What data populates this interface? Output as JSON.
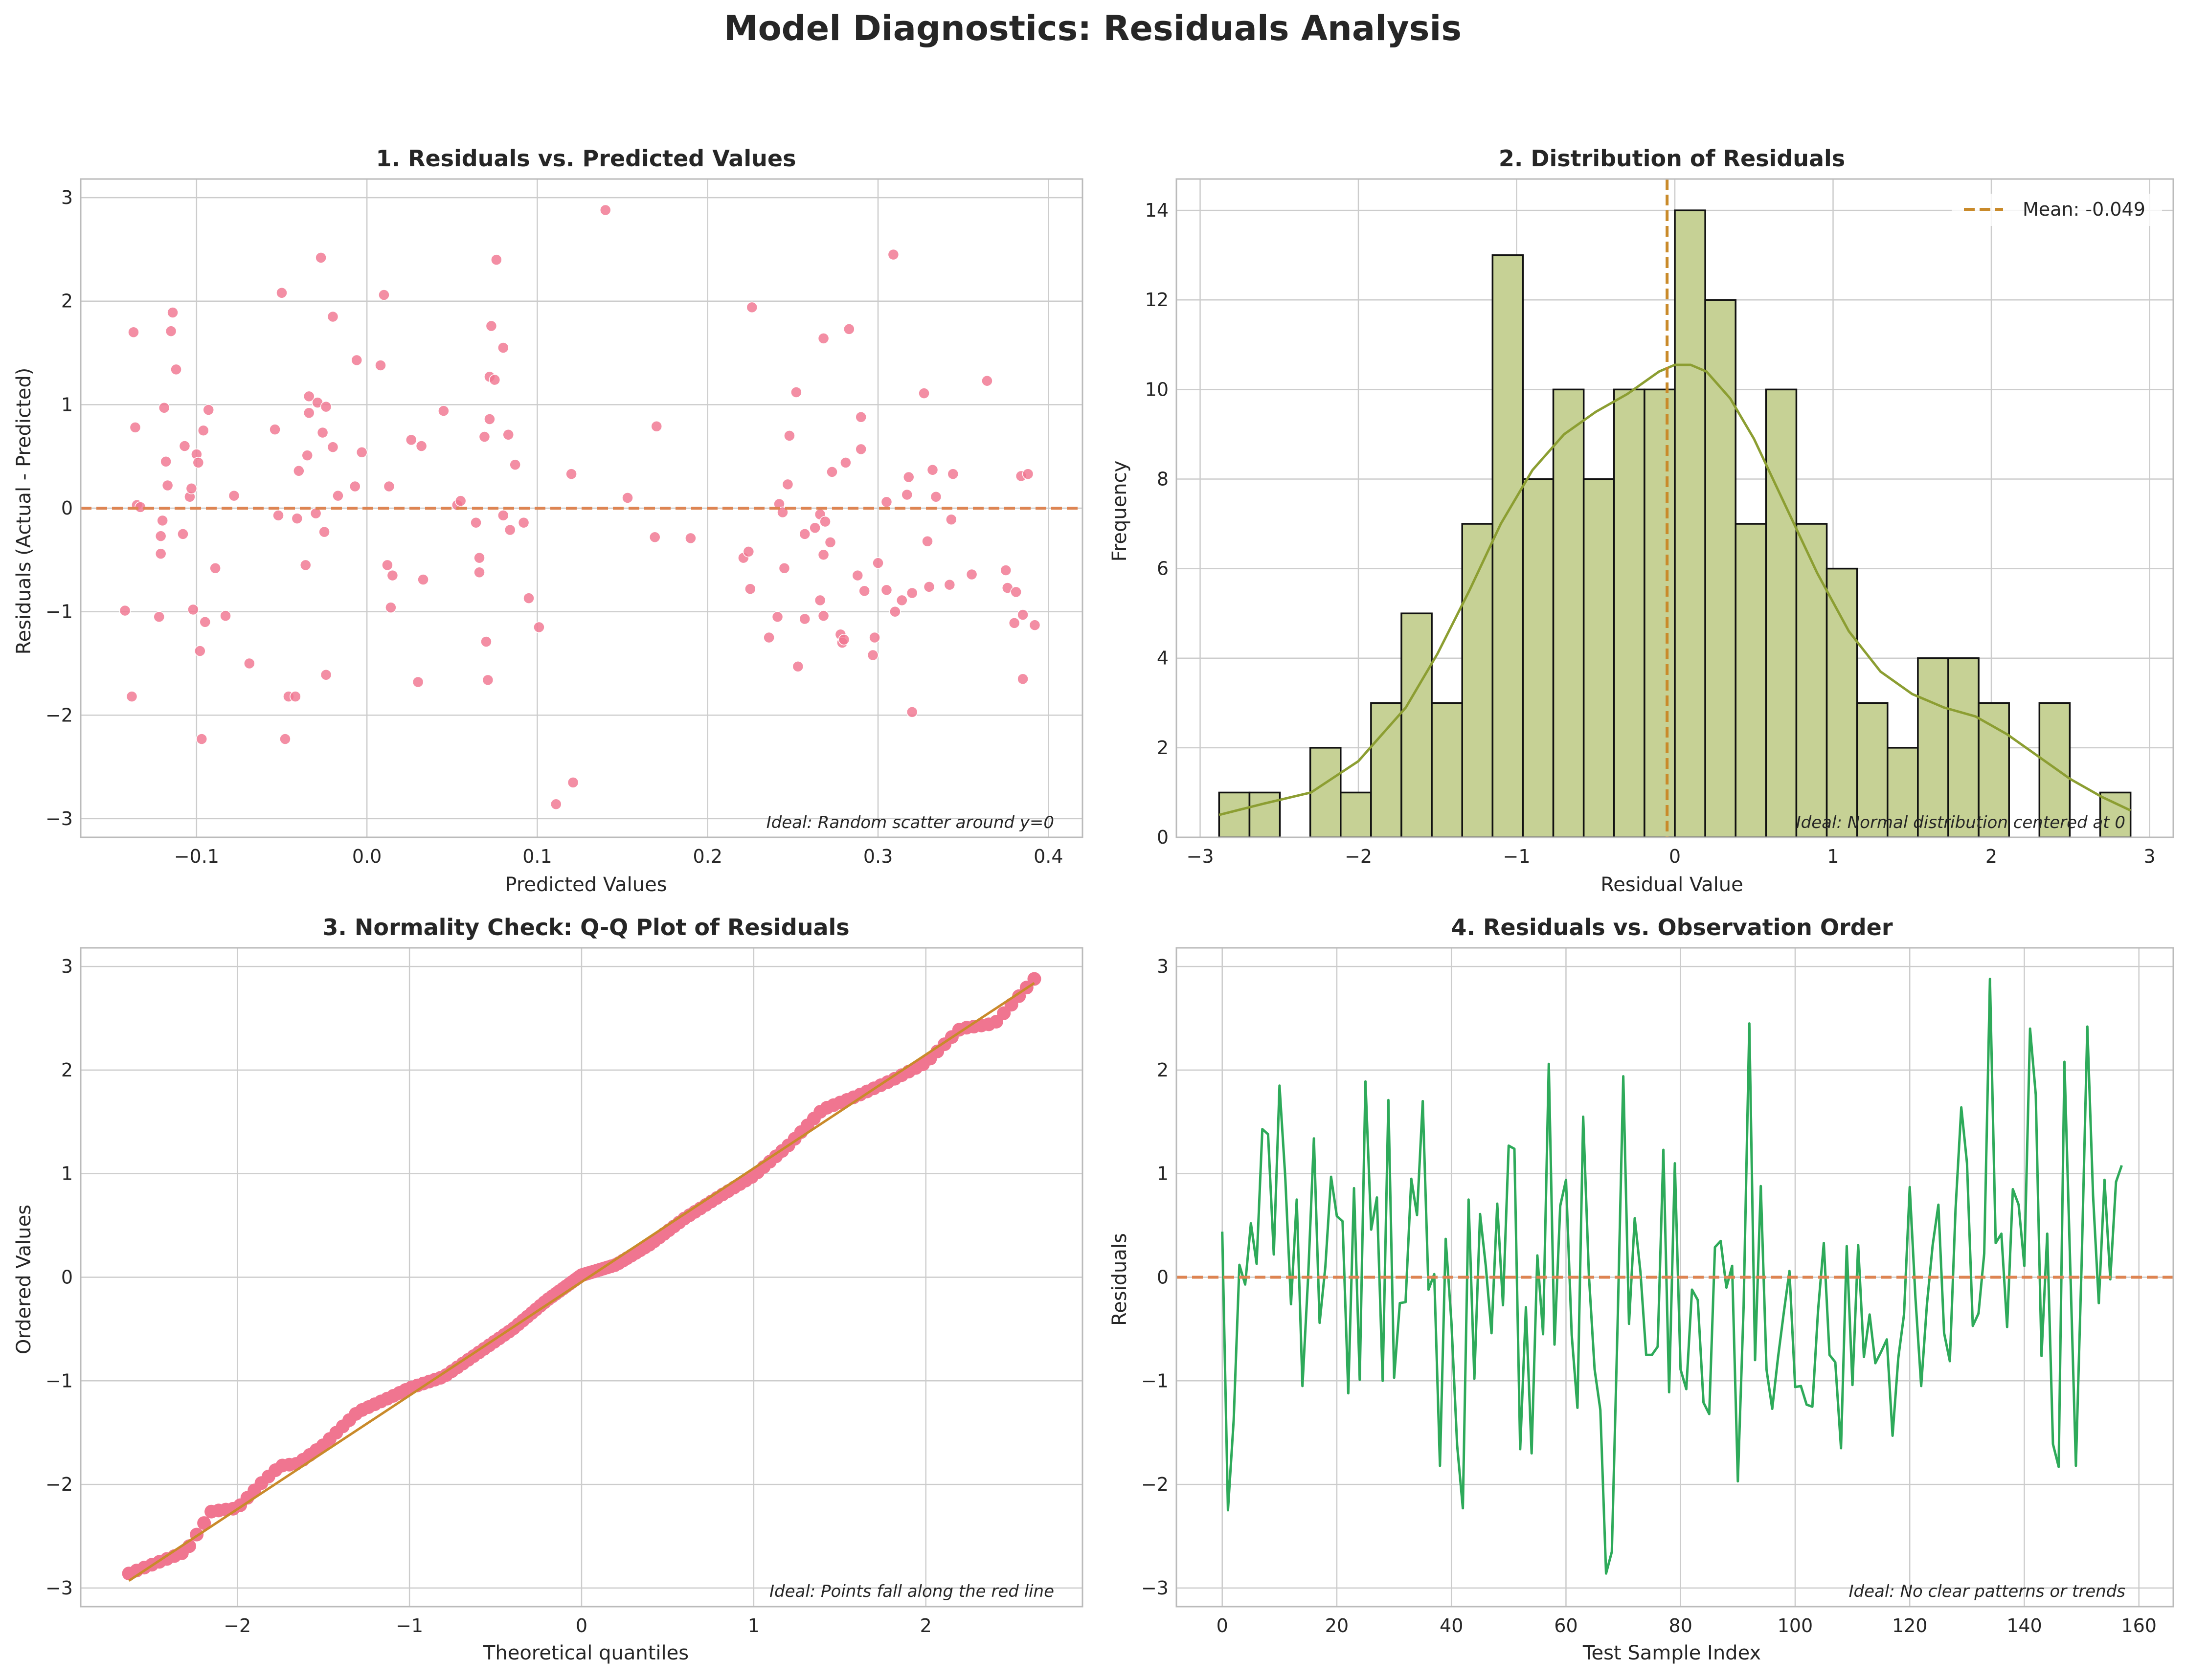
{
  "title": "Model Diagnostics: Residuals Analysis",
  "colors": {
    "scatter": "#f07590",
    "qq_points": "#f07590",
    "qq_line": "#c98a2a",
    "zero_line": "#dd8452",
    "hist_fill": "#c6d195",
    "hist_edge": "#111111",
    "kde": "#8c9e32",
    "mean_line": "#c98a2a",
    "seq_line": "#2eaa5a",
    "grid": "#cccccc",
    "spine": "#bbbbbb"
  },
  "chart_data": [
    {
      "type": "scatter",
      "title": "1. Residuals vs. Predicted Values",
      "xlabel": "Predicted Values",
      "ylabel": "Residuals (Actual - Predicted)",
      "xlim": [
        -0.168,
        0.42
      ],
      "ylim": [
        -3.18,
        3.18
      ],
      "xticks": [
        -0.1,
        0.0,
        0.1,
        0.2,
        0.3,
        0.4
      ],
      "xtick_labels": [
        "−0.1",
        "0.0",
        "0.1",
        "0.2",
        "0.3",
        "0.4"
      ],
      "yticks": [
        -3,
        -2,
        -1,
        0,
        1,
        2,
        3
      ],
      "ytick_labels": [
        "−3",
        "−2",
        "−1",
        "0",
        "1",
        "2",
        "3"
      ],
      "reference_line": {
        "y": 0,
        "style": "dashed"
      },
      "annotation": "Ideal: Random scatter around y=0",
      "grid": true,
      "points": [
        [
          -0.142,
          -0.99
        ],
        [
          -0.138,
          -1.82
        ],
        [
          -0.137,
          1.7
        ],
        [
          -0.136,
          0.78
        ],
        [
          -0.135,
          0.03
        ],
        [
          -0.133,
          0.01
        ],
        [
          -0.122,
          -1.05
        ],
        [
          -0.121,
          -0.27
        ],
        [
          -0.121,
          -0.44
        ],
        [
          -0.12,
          -0.12
        ],
        [
          -0.119,
          0.97
        ],
        [
          -0.118,
          0.45
        ],
        [
          -0.117,
          0.22
        ],
        [
          -0.115,
          1.71
        ],
        [
          -0.114,
          1.89
        ],
        [
          -0.112,
          1.34
        ],
        [
          -0.108,
          -0.25
        ],
        [
          -0.107,
          0.6
        ],
        [
          -0.104,
          0.11
        ],
        [
          -0.103,
          0.19
        ],
        [
          -0.102,
          -0.98
        ],
        [
          -0.1,
          0.52
        ],
        [
          -0.099,
          0.44
        ],
        [
          -0.098,
          -1.38
        ],
        [
          -0.097,
          -2.23
        ],
        [
          -0.096,
          0.75
        ],
        [
          -0.095,
          -1.1
        ],
        [
          -0.093,
          0.95
        ],
        [
          -0.089,
          -0.58
        ],
        [
          -0.083,
          -1.04
        ],
        [
          -0.078,
          0.12
        ],
        [
          -0.069,
          -1.5
        ],
        [
          -0.054,
          0.76
        ],
        [
          -0.052,
          -0.07
        ],
        [
          -0.05,
          2.08
        ],
        [
          -0.048,
          -2.23
        ],
        [
          -0.046,
          -1.82
        ],
        [
          -0.042,
          -1.82
        ],
        [
          -0.041,
          -0.1
        ],
        [
          -0.04,
          0.36
        ],
        [
          -0.036,
          -0.55
        ],
        [
          -0.035,
          0.51
        ],
        [
          -0.034,
          0.92
        ],
        [
          -0.034,
          1.08
        ],
        [
          -0.03,
          -0.05
        ],
        [
          -0.029,
          1.02
        ],
        [
          -0.027,
          2.42
        ],
        [
          -0.026,
          0.73
        ],
        [
          -0.025,
          -0.23
        ],
        [
          -0.024,
          0.98
        ],
        [
          -0.024,
          -1.61
        ],
        [
          -0.02,
          1.85
        ],
        [
          -0.02,
          0.59
        ],
        [
          -0.017,
          0.12
        ],
        [
          -0.007,
          0.21
        ],
        [
          -0.006,
          1.43
        ],
        [
          -0.003,
          0.54
        ],
        [
          0.008,
          1.38
        ],
        [
          0.01,
          2.06
        ],
        [
          0.012,
          -0.55
        ],
        [
          0.013,
          0.21
        ],
        [
          0.014,
          -0.96
        ],
        [
          0.015,
          -0.65
        ],
        [
          0.026,
          0.66
        ],
        [
          0.03,
          -1.68
        ],
        [
          0.032,
          0.6
        ],
        [
          0.033,
          -0.69
        ],
        [
          0.045,
          0.94
        ],
        [
          0.053,
          0.03
        ],
        [
          0.055,
          0.07
        ],
        [
          0.064,
          -0.14
        ],
        [
          0.066,
          -0.62
        ],
        [
          0.066,
          -0.48
        ],
        [
          0.069,
          0.69
        ],
        [
          0.07,
          -1.29
        ],
        [
          0.071,
          -1.66
        ],
        [
          0.072,
          0.86
        ],
        [
          0.072,
          1.27
        ],
        [
          0.073,
          1.76
        ],
        [
          0.075,
          1.24
        ],
        [
          0.076,
          2.4
        ],
        [
          0.08,
          -0.07
        ],
        [
          0.08,
          1.55
        ],
        [
          0.083,
          0.71
        ],
        [
          0.084,
          -0.21
        ],
        [
          0.087,
          0.42
        ],
        [
          0.092,
          -0.14
        ],
        [
          0.095,
          -0.87
        ],
        [
          0.101,
          -1.15
        ],
        [
          0.111,
          -2.86
        ],
        [
          0.12,
          0.33
        ],
        [
          0.121,
          -2.65
        ],
        [
          0.14,
          2.88
        ],
        [
          0.153,
          0.1
        ],
        [
          0.169,
          -0.28
        ],
        [
          0.17,
          0.79
        ],
        [
          0.19,
          -0.29
        ],
        [
          0.221,
          -0.48
        ],
        [
          0.224,
          -0.42
        ],
        [
          0.225,
          -0.78
        ],
        [
          0.226,
          1.94
        ],
        [
          0.236,
          -1.25
        ],
        [
          0.241,
          -1.05
        ],
        [
          0.242,
          0.04
        ],
        [
          0.244,
          -0.04
        ],
        [
          0.245,
          -0.58
        ],
        [
          0.247,
          0.23
        ],
        [
          0.248,
          0.7
        ],
        [
          0.252,
          1.12
        ],
        [
          0.253,
          -1.53
        ],
        [
          0.257,
          -0.25
        ],
        [
          0.257,
          -1.07
        ],
        [
          0.263,
          -0.19
        ],
        [
          0.266,
          -0.89
        ],
        [
          0.266,
          -0.06
        ],
        [
          0.268,
          -1.04
        ],
        [
          0.268,
          1.64
        ],
        [
          0.268,
          -0.45
        ],
        [
          0.269,
          -0.13
        ],
        [
          0.272,
          -0.33
        ],
        [
          0.273,
          0.35
        ],
        [
          0.278,
          -1.22
        ],
        [
          0.279,
          -1.3
        ],
        [
          0.28,
          -1.27
        ],
        [
          0.281,
          0.44
        ],
        [
          0.283,
          1.73
        ],
        [
          0.288,
          -0.65
        ],
        [
          0.29,
          0.57
        ],
        [
          0.29,
          0.88
        ],
        [
          0.292,
          -0.8
        ],
        [
          0.297,
          -1.42
        ],
        [
          0.298,
          -1.25
        ],
        [
          0.3,
          -0.53
        ],
        [
          0.305,
          0.06
        ],
        [
          0.305,
          -0.79
        ],
        [
          0.309,
          2.45
        ],
        [
          0.31,
          -1.0
        ],
        [
          0.314,
          -0.89
        ],
        [
          0.317,
          0.13
        ],
        [
          0.318,
          0.3
        ],
        [
          0.32,
          -0.82
        ],
        [
          0.32,
          -1.97
        ],
        [
          0.327,
          1.11
        ],
        [
          0.329,
          -0.32
        ],
        [
          0.33,
          -0.76
        ],
        [
          0.332,
          0.37
        ],
        [
          0.334,
          0.11
        ],
        [
          0.342,
          -0.74
        ],
        [
          0.343,
          -0.11
        ],
        [
          0.344,
          0.33
        ],
        [
          0.355,
          -0.64
        ],
        [
          0.364,
          1.23
        ],
        [
          0.375,
          -0.6
        ],
        [
          0.376,
          -0.77
        ],
        [
          0.38,
          -1.11
        ],
        [
          0.381,
          -0.81
        ],
        [
          0.384,
          0.31
        ],
        [
          0.385,
          -1.03
        ],
        [
          0.385,
          -1.65
        ],
        [
          0.388,
          0.33
        ],
        [
          0.392,
          -1.13
        ]
      ]
    },
    {
      "type": "bar",
      "title": "2. Distribution of Residuals",
      "xlabel": "Residual Value",
      "ylabel": "Frequency",
      "xlim": [
        -3.15,
        3.15
      ],
      "ylim": [
        0,
        14.7
      ],
      "xticks": [
        -3,
        -2,
        -1,
        0,
        1,
        2,
        3
      ],
      "xtick_labels": [
        "−3",
        "−2",
        "−1",
        "0",
        "1",
        "2",
        "3"
      ],
      "yticks": [
        0,
        2,
        4,
        6,
        8,
        10,
        12,
        14
      ],
      "ytick_labels": [
        "0",
        "2",
        "4",
        "6",
        "8",
        "10",
        "12",
        "14"
      ],
      "bin_start": -2.88,
      "bin_width": 0.192,
      "counts": [
        1,
        1,
        0,
        2,
        1,
        3,
        5,
        3,
        7,
        13,
        8,
        10,
        8,
        10,
        10,
        14,
        12,
        7,
        10,
        7,
        6,
        3,
        2,
        4,
        4,
        3,
        0,
        3,
        0,
        1
      ],
      "kde": {
        "x": [
          -2.88,
          -2.6,
          -2.3,
          -2.0,
          -1.7,
          -1.5,
          -1.3,
          -1.1,
          -0.9,
          -0.7,
          -0.5,
          -0.3,
          -0.1,
          0.0,
          0.1,
          0.2,
          0.35,
          0.5,
          0.7,
          0.9,
          1.1,
          1.3,
          1.5,
          1.7,
          1.9,
          2.1,
          2.3,
          2.5,
          2.7,
          2.88
        ],
        "y": [
          0.5,
          0.75,
          1.0,
          1.7,
          2.9,
          4.1,
          5.5,
          7.0,
          8.2,
          9.0,
          9.5,
          9.9,
          10.4,
          10.55,
          10.55,
          10.4,
          9.8,
          8.9,
          7.4,
          5.9,
          4.6,
          3.7,
          3.2,
          2.9,
          2.7,
          2.3,
          1.8,
          1.3,
          0.9,
          0.6
        ]
      },
      "mean": -0.049,
      "legend": [
        "Mean: -0.049"
      ],
      "legend_position": "top-right",
      "annotation": "Ideal: Normal distribution centered at 0",
      "grid": true
    },
    {
      "type": "scatter",
      "title": "3. Normality Check: Q-Q Plot of Residuals",
      "xlabel": "Theoretical quantiles",
      "ylabel": "Ordered Values",
      "xlim": [
        -2.91,
        2.91
      ],
      "ylim": [
        -3.18,
        3.18
      ],
      "xticks": [
        -2,
        -1,
        0,
        1,
        2
      ],
      "xtick_labels": [
        "−2",
        "−1",
        "0",
        "1",
        "2"
      ],
      "yticks": [
        -3,
        -2,
        -1,
        0,
        1,
        2,
        3
      ],
      "ytick_labels": [
        "−3",
        "−2",
        "−1",
        "0",
        "1",
        "2",
        "3"
      ],
      "fit_line": {
        "x": [
          -2.63,
          2.63
        ],
        "y": [
          -2.93,
          2.84
        ]
      },
      "annotation": "Ideal: Points fall along the red line",
      "grid": true,
      "n_points": 160,
      "theoretical_range": [
        -2.63,
        2.63
      ],
      "quantile_curve": {
        "x": [
          -2.63,
          -2.3,
          -2.15,
          -2.0,
          -1.85,
          -1.75,
          -1.65,
          -1.5,
          -1.3,
          -1.1,
          -1.0,
          -0.8,
          -0.6,
          -0.4,
          -0.2,
          0.0,
          0.2,
          0.4,
          0.6,
          0.8,
          1.0,
          1.2,
          1.4,
          1.6,
          1.8,
          2.0,
          2.2,
          2.4,
          2.63
        ],
        "y": [
          -2.86,
          -2.65,
          -2.26,
          -2.23,
          -1.97,
          -1.82,
          -1.8,
          -1.62,
          -1.3,
          -1.15,
          -1.07,
          -0.96,
          -0.73,
          -0.5,
          -0.22,
          0.02,
          0.12,
          0.32,
          0.57,
          0.78,
          0.98,
          1.27,
          1.62,
          1.75,
          1.9,
          2.07,
          2.4,
          2.45,
          2.88
        ]
      }
    },
    {
      "type": "line",
      "title": "4. Residuals vs. Observation Order",
      "xlabel": "Test Sample Index",
      "ylabel": "Residuals",
      "xlim": [
        -8,
        166
      ],
      "ylim": [
        -3.18,
        3.18
      ],
      "xticks": [
        0,
        20,
        40,
        60,
        80,
        100,
        120,
        140,
        160
      ],
      "xtick_labels": [
        "0",
        "20",
        "40",
        "60",
        "80",
        "100",
        "120",
        "140",
        "160"
      ],
      "yticks": [
        -3,
        -2,
        -1,
        0,
        1,
        2,
        3
      ],
      "ytick_labels": [
        "−3",
        "−2",
        "−1",
        "0",
        "1",
        "2",
        "3"
      ],
      "reference_line": {
        "y": 0,
        "style": "dashed"
      },
      "annotation": "Ideal: No clear patterns or trends",
      "grid": true,
      "values": [
        0.44,
        -2.25,
        -1.38,
        0.12,
        -0.07,
        0.52,
        0.13,
        1.43,
        1.38,
        0.22,
        1.85,
        0.97,
        -0.26,
        0.75,
        -1.05,
        0.01,
        1.34,
        -0.44,
        0.1,
        0.97,
        0.59,
        0.54,
        -1.12,
        0.86,
        -0.99,
        1.89,
        0.46,
        0.77,
        -1.0,
        1.71,
        -0.97,
        -0.25,
        -0.24,
        0.95,
        0.6,
        1.7,
        -0.12,
        0.03,
        -1.82,
        0.37,
        -0.43,
        -1.62,
        -2.23,
        0.75,
        -0.98,
        0.61,
        0.11,
        -0.54,
        0.71,
        -0.27,
        1.27,
        1.24,
        -1.66,
        -0.29,
        -1.7,
        0.21,
        -0.55,
        2.06,
        -0.65,
        0.69,
        0.94,
        -0.56,
        -1.26,
        1.55,
        0.02,
        -0.89,
        -1.28,
        -2.86,
        -2.65,
        -0.47,
        1.94,
        -0.45,
        0.57,
        0.05,
        -0.75,
        -0.75,
        -0.67,
        1.23,
        -1.11,
        1.1,
        -0.89,
        -1.08,
        -0.12,
        -0.22,
        -1.21,
        -1.32,
        0.29,
        0.35,
        -0.1,
        0.11,
        -1.97,
        -0.28,
        2.45,
        -0.8,
        0.88,
        -0.89,
        -1.27,
        -0.78,
        -0.35,
        0.06,
        -1.06,
        -1.05,
        -1.23,
        -1.25,
        -0.32,
        0.33,
        -0.75,
        -0.82,
        -1.65,
        0.3,
        -1.04,
        0.31,
        -0.77,
        -0.36,
        -0.83,
        -0.72,
        -0.6,
        -1.53,
        -0.78,
        -0.36,
        0.87,
        -0.2,
        -1.05,
        -0.26,
        0.31,
        0.7,
        -0.54,
        -0.81,
        0.66,
        1.64,
        1.1,
        -0.47,
        -0.35,
        0.23,
        2.88,
        0.33,
        0.42,
        -0.48,
        0.85,
        0.7,
        0.11,
        2.4,
        1.76,
        -0.76,
        0.42,
        -1.61,
        -1.83,
        2.08,
        0.13,
        -1.82,
        0.13,
        2.42,
        0.79,
        -0.25,
        0.94,
        -0.02,
        0.92,
        1.08
      ]
    }
  ]
}
